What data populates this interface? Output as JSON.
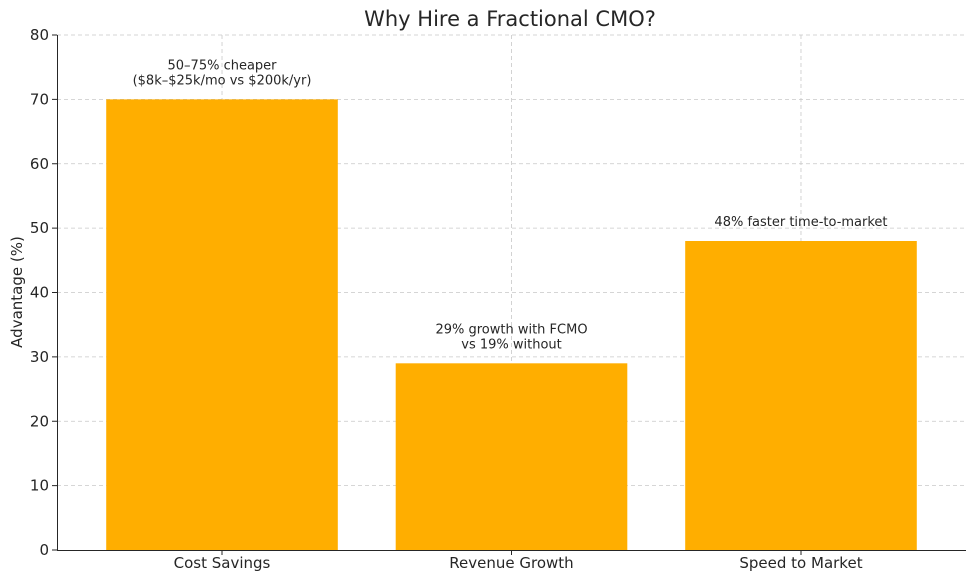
{
  "chart_data": {
    "type": "bar",
    "title": "Why Hire a Fractional CMO?",
    "xlabel": "",
    "ylabel": "Advantage (%)",
    "ylim": [
      0,
      80
    ],
    "yticks": [
      0,
      10,
      20,
      30,
      40,
      50,
      60,
      70,
      80
    ],
    "categories": [
      "Cost Savings",
      "Revenue Growth",
      "Speed to Market"
    ],
    "values": [
      70,
      29,
      48
    ],
    "annotations": [
      [
        "50–75% cheaper",
        "($8k–$25k/mo vs $200k/yr)"
      ],
      [
        "29% growth with FCMO",
        "vs 19% without"
      ],
      [
        "48% faster time-to-market"
      ]
    ],
    "bar_color": "#FFAE00",
    "grid": true
  }
}
